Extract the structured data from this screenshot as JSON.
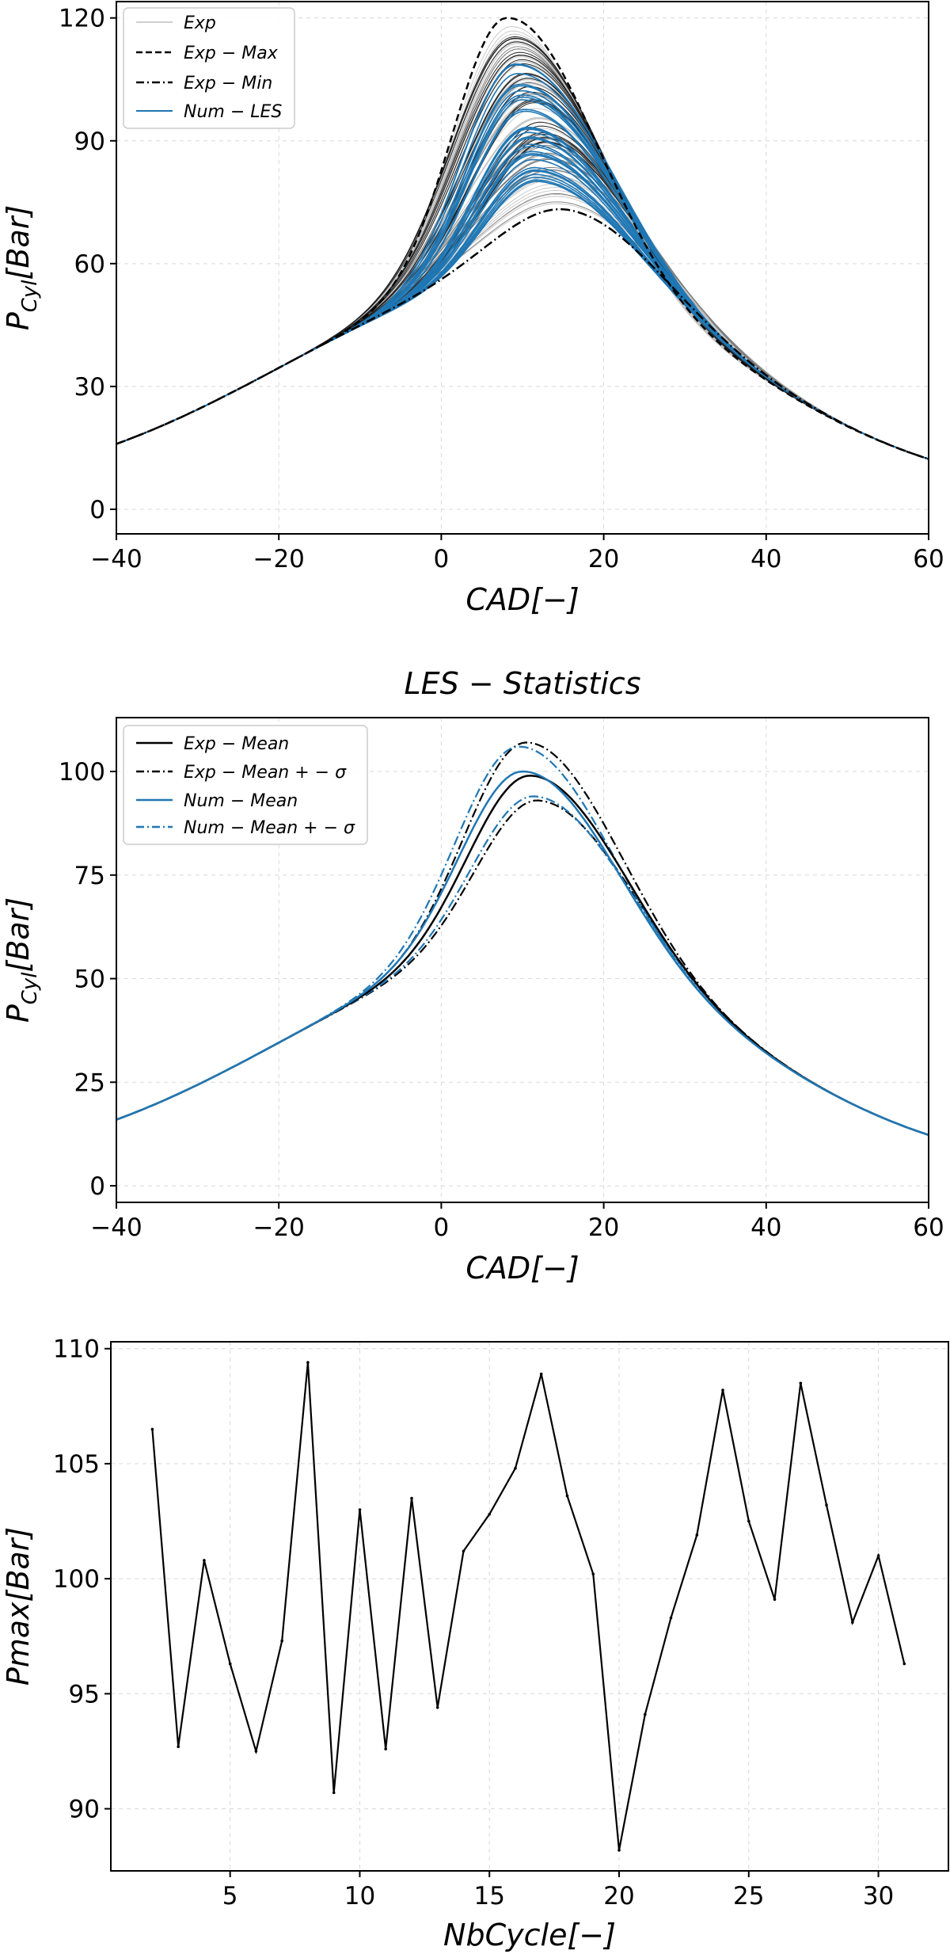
{
  "chart_data": [
    {
      "type": "line",
      "title": "",
      "xlabel": "CAD[−]",
      "ylabel": "P",
      "ylabel_sub": "Cyl",
      "ylabel_rest": "[Bar]",
      "xlim": [
        -40,
        60
      ],
      "ylim": [
        -6,
        124
      ],
      "xticks": [
        -40,
        -20,
        0,
        20,
        40,
        60
      ],
      "xtick_labels": [
        "−40",
        "−20",
        "0",
        "20",
        "40",
        "60"
      ],
      "yticks": [
        0,
        30,
        60,
        90,
        120
      ],
      "ytick_labels": [
        "0",
        "30",
        "60",
        "90",
        "120"
      ],
      "grid": true,
      "legend_position": "top-left",
      "series": [
        {
          "name": "Exp",
          "color": "#bdbdbd",
          "style": "solid",
          "envelope": {
            "low_peak": 73,
            "high_peak": 118
          }
        },
        {
          "name": "Exp − Max",
          "color": "#000000",
          "style": "dashed",
          "peak_cad": 8,
          "peak_value": 120
        },
        {
          "name": "Exp − Min",
          "color": "#000000",
          "style": "dashdot",
          "peak_cad": 16,
          "peak_value": 73
        },
        {
          "name": "Num − LES",
          "color": "#1f77b4",
          "style": "solid",
          "envelope": {
            "low_peak": 80,
            "high_peak": 110
          }
        }
      ]
    },
    {
      "type": "line",
      "title": "LES − Statistics",
      "xlabel": "CAD[−]",
      "ylabel": "P",
      "ylabel_sub": "Cyl",
      "ylabel_rest": "[Bar]",
      "xlim": [
        -40,
        60
      ],
      "ylim": [
        -4,
        113
      ],
      "xticks": [
        -40,
        -20,
        0,
        20,
        40,
        60
      ],
      "xtick_labels": [
        "−40",
        "−20",
        "0",
        "20",
        "40",
        "60"
      ],
      "yticks": [
        0,
        25,
        50,
        75,
        100
      ],
      "ytick_labels": [
        "0",
        "25",
        "50",
        "75",
        "100"
      ],
      "grid": true,
      "legend_position": "top-left",
      "series": [
        {
          "name": "Exp − Mean",
          "color": "#000000",
          "style": "solid",
          "peak_cad": 11,
          "peak_value": 99
        },
        {
          "name": "Exp − Mean + − σ",
          "color": "#000000",
          "style": "dashdot",
          "bands": [
            {
              "peak_cad": 10.5,
              "peak_value": 107
            },
            {
              "peak_cad": 12,
              "peak_value": 93
            }
          ]
        },
        {
          "name": "Num − Mean",
          "color": "#1f77b4",
          "style": "solid",
          "peak_cad": 10,
          "peak_value": 100
        },
        {
          "name": "Num − Mean + − σ",
          "color": "#1f77b4",
          "style": "dashdot",
          "bands": [
            {
              "peak_cad": 9.5,
              "peak_value": 106
            },
            {
              "peak_cad": 11.5,
              "peak_value": 94
            }
          ]
        }
      ]
    },
    {
      "type": "line",
      "title": "",
      "xlabel": "NbCycle[−]",
      "ylabel": "Pmax[Bar]",
      "xlim": [
        0.4,
        32.7
      ],
      "ylim": [
        87.3,
        110.3
      ],
      "xticks": [
        5,
        10,
        15,
        20,
        25,
        30
      ],
      "xtick_labels": [
        "5",
        "10",
        "15",
        "20",
        "25",
        "30"
      ],
      "yticks": [
        90,
        95,
        100,
        105,
        110
      ],
      "ytick_labels": [
        "90",
        "95",
        "100",
        "105",
        "110"
      ],
      "grid": true,
      "x": [
        2,
        3,
        4,
        5,
        6,
        7,
        8,
        9,
        10,
        11,
        12,
        13,
        14,
        15,
        16,
        17,
        18,
        19,
        20,
        21,
        22,
        23,
        24,
        25,
        26,
        27,
        28,
        29,
        30,
        31
      ],
      "y": [
        106.5,
        92.7,
        100.8,
        96.3,
        92.5,
        97.3,
        109.4,
        90.7,
        103.0,
        92.6,
        103.5,
        94.4,
        101.2,
        102.8,
        104.8,
        108.9,
        103.6,
        100.2,
        88.2,
        94.1,
        98.3,
        101.9,
        108.2,
        102.5,
        99.1,
        108.5,
        103.2,
        98.1,
        101.0,
        96.3
      ],
      "series": [
        {
          "name": "Pmax",
          "color": "#000000",
          "style": "solid"
        }
      ]
    }
  ]
}
